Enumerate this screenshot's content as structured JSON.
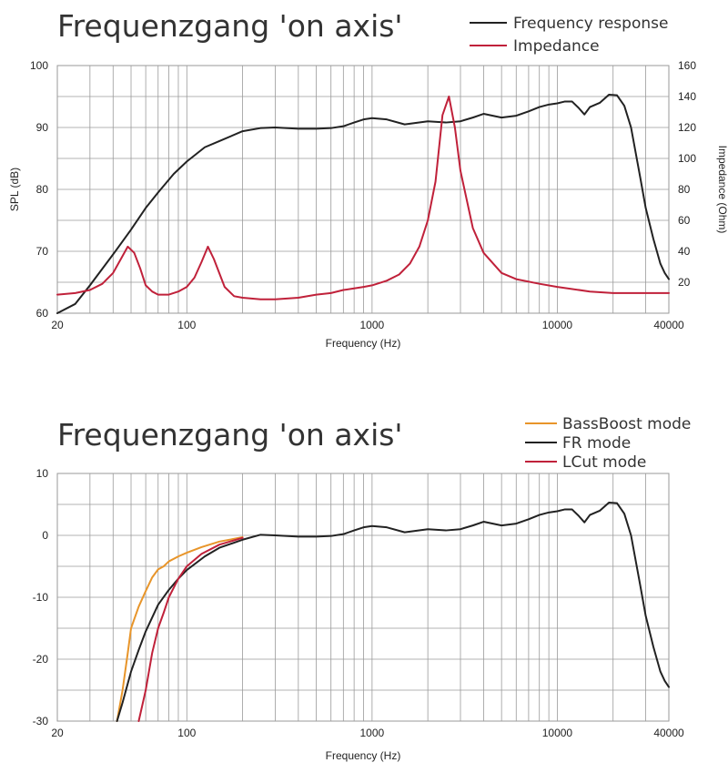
{
  "chart_data": [
    {
      "type": "line",
      "title": "Frequenzgang 'on axis'",
      "xlabel": "Frequency (Hz)",
      "ylabel": "SPL (dB)",
      "y2label": "Impedance (Ohm)",
      "xscale": "log",
      "xlim": [
        20,
        40000
      ],
      "ylim": [
        60,
        100
      ],
      "y2lim": [
        0,
        160
      ],
      "xticks": [
        20,
        100,
        1000,
        10000,
        40000
      ],
      "yticks": [
        60,
        70,
        80,
        90,
        100
      ],
      "y2ticks": [
        20,
        40,
        60,
        80,
        100,
        120,
        140,
        160
      ],
      "legend_position": "top-right",
      "grid": true,
      "series": [
        {
          "name": "Frequency response",
          "color": "#222222",
          "axis": "left",
          "x": [
            20,
            25,
            30,
            40,
            50,
            60,
            70,
            85,
            100,
            125,
            150,
            200,
            250,
            300,
            400,
            500,
            600,
            700,
            800,
            900,
            1000,
            1200,
            1500,
            2000,
            2500,
            3000,
            3500,
            4000,
            5000,
            6000,
            7000,
            8000,
            9000,
            10000,
            11000,
            12000,
            13000,
            14000,
            15000,
            17000,
            19000,
            21000,
            23000,
            25000,
            28000,
            30000,
            33000,
            36000,
            38000,
            40000
          ],
          "y": [
            58.5,
            61.5,
            64.5,
            69.5,
            73.5,
            77.0,
            79.5,
            82.5,
            84.5,
            86.8,
            87.8,
            89.4,
            89.9,
            90.0,
            89.8,
            89.8,
            89.9,
            90.2,
            90.8,
            91.3,
            91.5,
            91.3,
            90.5,
            91.0,
            90.8,
            91.0,
            91.6,
            92.2,
            91.6,
            91.9,
            92.6,
            93.3,
            93.7,
            93.9,
            94.2,
            94.2,
            93.2,
            92.1,
            93.3,
            94.0,
            95.3,
            95.2,
            93.5,
            90.0,
            82.0,
            77.0,
            72.0,
            68.0,
            66.5,
            65.5
          ]
        },
        {
          "name": "Impedance",
          "color": "#c0213a",
          "axis": "right",
          "x": [
            20,
            25,
            30,
            35,
            40,
            45,
            48,
            52,
            56,
            60,
            65,
            70,
            80,
            90,
            100,
            110,
            120,
            130,
            140,
            160,
            180,
            200,
            250,
            300,
            400,
            500,
            600,
            700,
            800,
            900,
            1000,
            1200,
            1400,
            1600,
            1800,
            2000,
            2200,
            2400,
            2600,
            2800,
            3000,
            3500,
            4000,
            5000,
            6000,
            8000,
            10000,
            15000,
            20000,
            30000,
            40000
          ],
          "y": [
            12,
            13,
            15,
            19,
            26,
            37,
            43,
            39,
            29,
            18,
            14,
            12,
            12,
            14,
            17,
            23,
            33,
            43,
            35,
            17,
            11,
            10,
            9,
            9,
            10,
            12,
            13,
            15,
            16,
            17,
            18,
            21,
            25,
            32,
            43,
            60,
            85,
            128,
            140,
            120,
            92,
            55,
            39,
            26,
            22,
            19,
            17,
            14,
            13,
            13,
            13
          ]
        }
      ]
    },
    {
      "type": "line",
      "title": "Frequenzgang 'on axis'",
      "xlabel": "Frequency (Hz)",
      "ylabel": "",
      "xscale": "log",
      "xlim": [
        20,
        40000
      ],
      "ylim": [
        -30,
        10
      ],
      "xticks": [
        20,
        100,
        1000,
        10000,
        40000
      ],
      "yticks": [
        -30,
        -20,
        -10,
        0,
        10
      ],
      "legend_position": "top-right",
      "grid": true,
      "series": [
        {
          "name": "BassBoost mode",
          "color": "#e8952a",
          "x": [
            42,
            45,
            48,
            50,
            55,
            60,
            65,
            70,
            75,
            80,
            90,
            100,
            120,
            150,
            200
          ],
          "y": [
            -30.0,
            -25.0,
            -19.0,
            -15.0,
            -11.5,
            -9.0,
            -6.8,
            -5.5,
            -5.0,
            -4.2,
            -3.4,
            -2.8,
            -1.9,
            -1.0,
            -0.3
          ]
        },
        {
          "name": "FR mode",
          "color": "#222222",
          "x": [
            42,
            45,
            50,
            55,
            60,
            70,
            80,
            90,
            100,
            125,
            150,
            200,
            250,
            300,
            400,
            500,
            600,
            700,
            800,
            900,
            1000,
            1200,
            1500,
            2000,
            2500,
            3000,
            3500,
            4000,
            5000,
            6000,
            7000,
            8000,
            9000,
            10000,
            11000,
            12000,
            13000,
            14000,
            15000,
            17000,
            19000,
            21000,
            23000,
            25000,
            28000,
            30000,
            33000,
            36000,
            38000,
            40000
          ],
          "y": [
            -30.0,
            -27.0,
            -22.0,
            -18.5,
            -15.5,
            -11.2,
            -8.8,
            -7.0,
            -5.6,
            -3.4,
            -2.0,
            -0.7,
            0.1,
            0.0,
            -0.2,
            -0.2,
            -0.1,
            0.2,
            0.8,
            1.3,
            1.5,
            1.3,
            0.5,
            1.0,
            0.8,
            1.0,
            1.6,
            2.2,
            1.6,
            1.9,
            2.6,
            3.3,
            3.7,
            3.9,
            4.2,
            4.2,
            3.2,
            2.1,
            3.3,
            4.0,
            5.3,
            5.2,
            3.5,
            0.0,
            -8.0,
            -13.0,
            -18.0,
            -22.0,
            -23.5,
            -24.5
          ]
        },
        {
          "name": "LCut mode",
          "color": "#c0213a",
          "x": [
            55,
            60,
            65,
            70,
            75,
            80,
            90,
            100,
            120,
            150,
            200
          ],
          "y": [
            -30.0,
            -25.0,
            -19.0,
            -15.0,
            -12.5,
            -10.0,
            -7.0,
            -5.0,
            -3.0,
            -1.5,
            -0.4
          ]
        }
      ]
    }
  ]
}
